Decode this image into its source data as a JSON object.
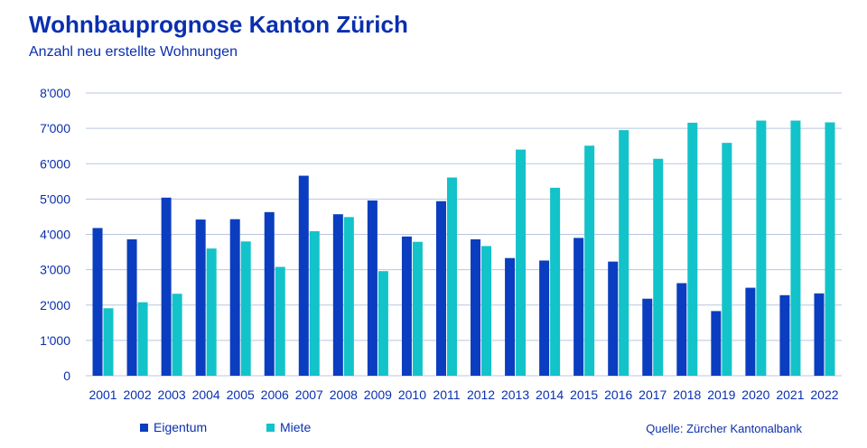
{
  "title": "Wohnbauprognose Kanton Zürich",
  "subtitle": "Anzahl neu erstellte Wohnungen",
  "source": "Quelle: Zürcher Kantonalbank",
  "colors": {
    "eigentum": "#0a3dbf",
    "miete": "#12c3c9",
    "text": "#0a2fb0",
    "grid": "#b9c6e0"
  },
  "chart_data": {
    "type": "bar",
    "title": "Wohnbauprognose Kanton Zürich",
    "subtitle": "Anzahl neu erstellte Wohnungen",
    "xlabel": "",
    "ylabel": "",
    "ylim": [
      0,
      8000
    ],
    "yticks": [
      "0",
      "1'000",
      "2'000",
      "3'000",
      "4'000",
      "5'000",
      "6'000",
      "7'000",
      "8'000"
    ],
    "grid": true,
    "legend_position": "bottom-left",
    "categories": [
      "2001",
      "2002",
      "2003",
      "2004",
      "2005",
      "2006",
      "2007",
      "2008",
      "2009",
      "2010",
      "2011",
      "2012",
      "2013",
      "2014",
      "2015",
      "2016",
      "2017",
      "2018",
      "2019",
      "2020",
      "2021",
      "2022"
    ],
    "series": [
      {
        "name": "Eigentum",
        "values": [
          4180,
          3860,
          5040,
          4420,
          4430,
          4630,
          5660,
          4570,
          4960,
          3940,
          4940,
          3860,
          3330,
          3260,
          3900,
          3230,
          2180,
          2620,
          1830,
          2490,
          2280,
          2330
        ]
      },
      {
        "name": "Miete",
        "values": [
          1910,
          2080,
          2320,
          3600,
          3800,
          3080,
          4090,
          4490,
          2960,
          3790,
          5610,
          3670,
          6400,
          5320,
          6510,
          6950,
          6140,
          7160,
          6590,
          7220,
          7220,
          7170
        ]
      }
    ]
  }
}
